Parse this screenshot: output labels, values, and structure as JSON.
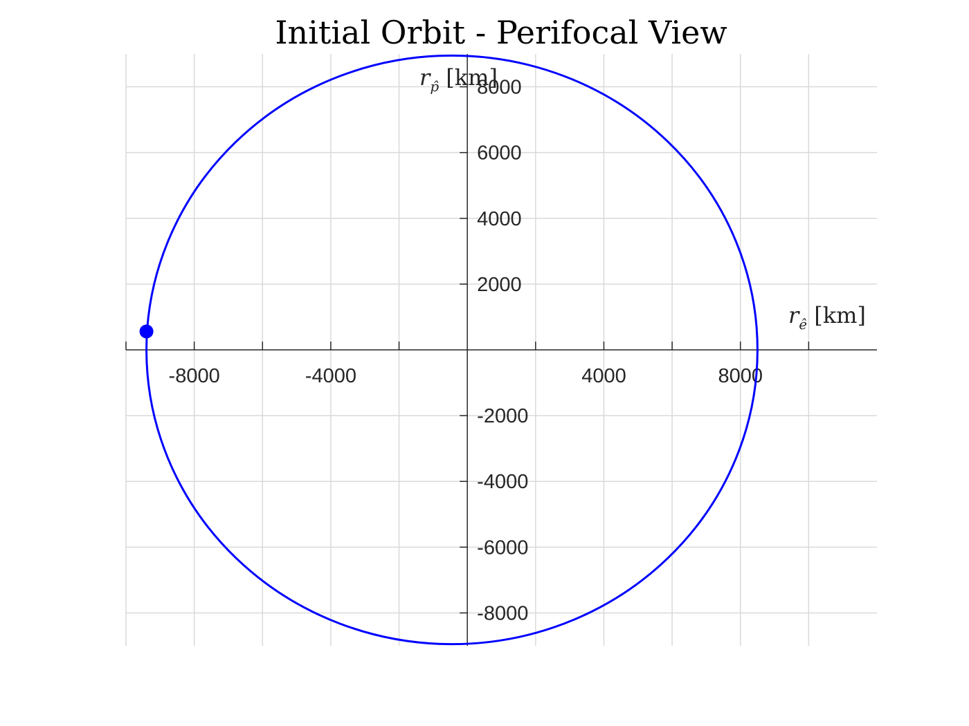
{
  "chart_data": {
    "type": "line",
    "title": "Initial Orbit - Perifocal View",
    "xlabel": {
      "symbol": "r",
      "subscript": "ê",
      "unit": "[km]"
    },
    "ylabel": {
      "symbol": "r",
      "subscript": "p̂",
      "unit": "[km]"
    },
    "xlim": [
      -10000,
      12000
    ],
    "ylim": [
      -9000,
      9000
    ],
    "axis_origin": "center",
    "grid": true,
    "x_grid": [
      -10000,
      -8000,
      -6000,
      -4000,
      -2000,
      0,
      2000,
      4000,
      6000,
      8000,
      10000
    ],
    "y_grid": [
      -8000,
      -6000,
      -4000,
      -2000,
      0,
      2000,
      4000,
      6000,
      8000
    ],
    "x_tick_labels": [
      {
        "value": -8000,
        "label": "-8000"
      },
      {
        "value": -4000,
        "label": "-4000"
      },
      {
        "value": 4000,
        "label": "4000"
      },
      {
        "value": 8000,
        "label": "8000"
      }
    ],
    "y_tick_labels": [
      {
        "value": 8000,
        "label": "8000"
      },
      {
        "value": 6000,
        "label": "6000"
      },
      {
        "value": 4000,
        "label": "4000"
      },
      {
        "value": 2000,
        "label": "2000"
      },
      {
        "value": -2000,
        "label": "-2000"
      },
      {
        "value": -4000,
        "label": "-4000"
      },
      {
        "value": -6000,
        "label": "-6000"
      },
      {
        "value": -8000,
        "label": "-8000"
      }
    ],
    "series": [
      {
        "kind": "ellipse",
        "center": [
          -450,
          0
        ],
        "semi_axes": [
          8950,
          8950
        ],
        "color": "#0000ff"
      }
    ],
    "markers": [
      {
        "x": -9400,
        "y": 560,
        "color": "#0000ff"
      }
    ]
  }
}
